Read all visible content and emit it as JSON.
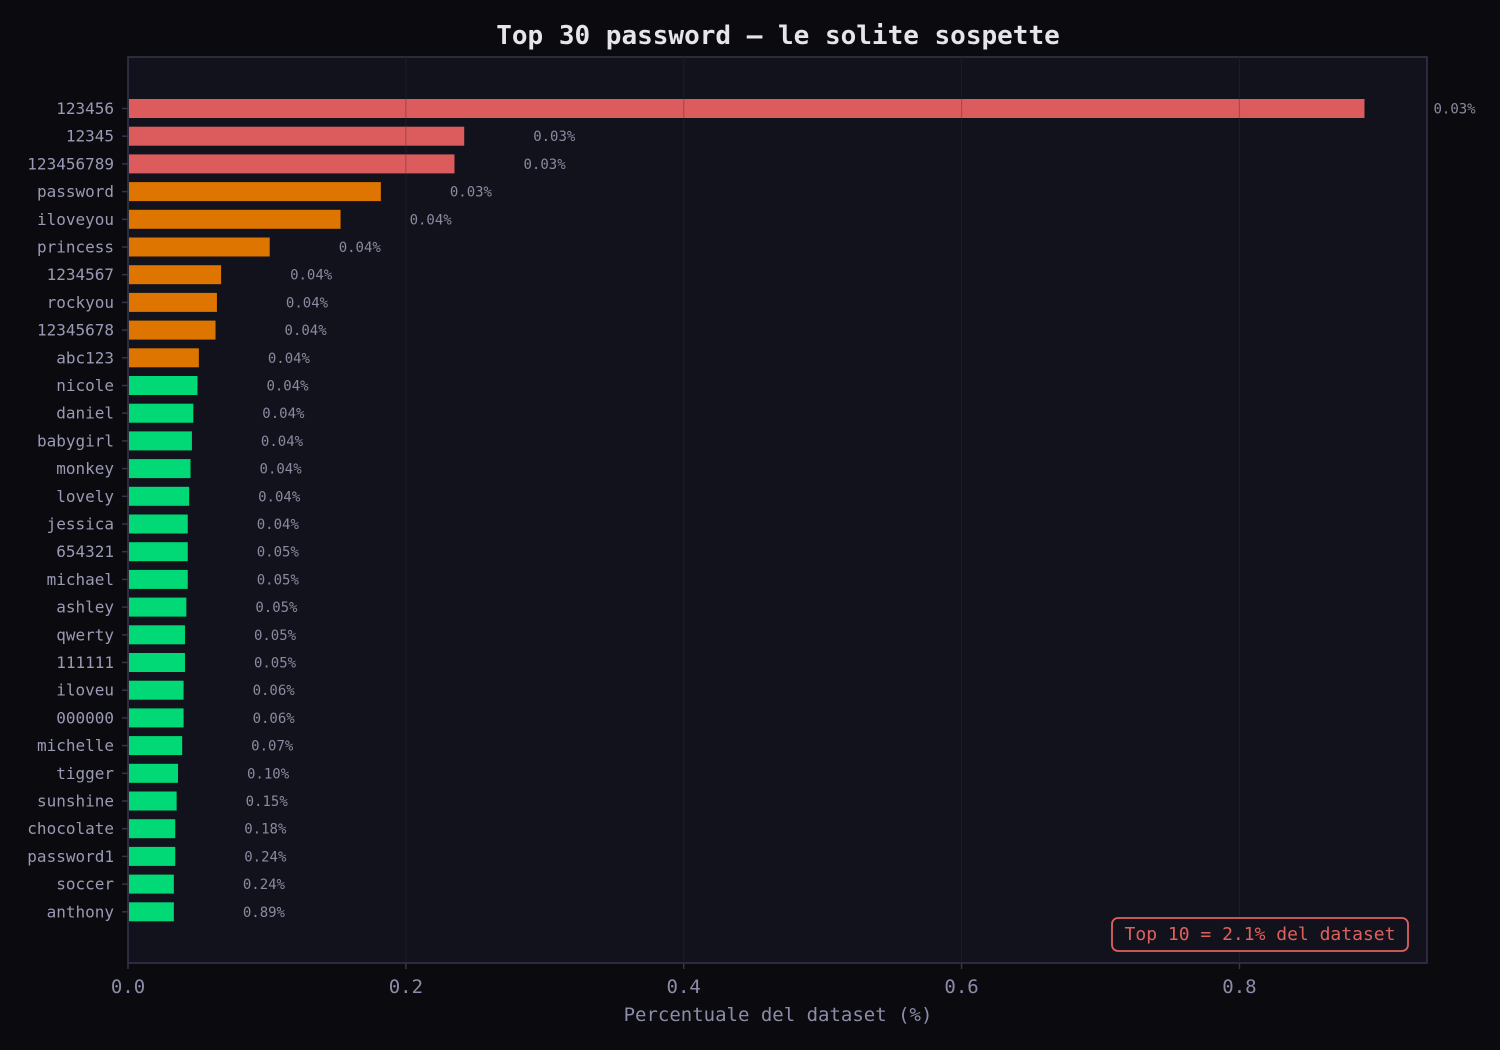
{
  "colors": {
    "page_bg": "#0a0a0f",
    "plot_bg": "#12121c",
    "spine": "#34344a",
    "top3": "#dc5c5e",
    "top4_10": "#dd7500",
    "rest": "#00d976",
    "annotation": "#e0605f"
  },
  "chart_data": {
    "type": "bar",
    "orientation": "horizontal",
    "title": "Top 30 password — le solite sospette",
    "xlabel": "Percentuale del dataset (%)",
    "ylabel": "",
    "xlim": [
      0,
      0.935
    ],
    "xticks": [
      0,
      0.2,
      0.4,
      0.6,
      0.8
    ],
    "xtick_labels": [
      "0.0",
      "0.2",
      "0.4",
      "0.6",
      "0.8"
    ],
    "grid": "vertical",
    "categories": [
      "123456",
      "12345",
      "123456789",
      "password",
      "iloveyou",
      "princess",
      "1234567",
      "rockyou",
      "12345678",
      "abc123",
      "nicole",
      "daniel",
      "babygirl",
      "monkey",
      "lovely",
      "jessica",
      "654321",
      "michael",
      "ashley",
      "qwerty",
      "111111",
      "iloveu",
      "000000",
      "michelle",
      "tigger",
      "sunshine",
      "chocolate",
      "password1",
      "soccer",
      "anthony"
    ],
    "values": [
      0.89,
      0.242,
      0.235,
      0.182,
      0.153,
      0.102,
      0.067,
      0.064,
      0.063,
      0.051,
      0.05,
      0.047,
      0.046,
      0.045,
      0.044,
      0.043,
      0.043,
      0.043,
      0.042,
      0.041,
      0.041,
      0.04,
      0.04,
      0.039,
      0.036,
      0.035,
      0.034,
      0.034,
      0.033,
      0.033
    ],
    "value_labels": [
      "0.03%",
      "0.03%",
      "0.03%",
      "0.03%",
      "0.04%",
      "0.04%",
      "0.04%",
      "0.04%",
      "0.04%",
      "0.04%",
      "0.04%",
      "0.04%",
      "0.04%",
      "0.04%",
      "0.04%",
      "0.04%",
      "0.05%",
      "0.05%",
      "0.05%",
      "0.05%",
      "0.05%",
      "0.06%",
      "0.06%",
      "0.07%",
      "0.10%",
      "0.15%",
      "0.18%",
      "0.24%",
      "0.24%",
      "0.89%"
    ],
    "color_groups": [
      "top3",
      "top3",
      "top3",
      "top4_10",
      "top4_10",
      "top4_10",
      "top4_10",
      "top4_10",
      "top4_10",
      "top4_10",
      "rest",
      "rest",
      "rest",
      "rest",
      "rest",
      "rest",
      "rest",
      "rest",
      "rest",
      "rest",
      "rest",
      "rest",
      "rest",
      "rest",
      "rest",
      "rest",
      "rest",
      "rest",
      "rest",
      "rest"
    ],
    "annotation": "Top 10 = 2.1% del dataset",
    "annotation_position": "bottom-right"
  }
}
